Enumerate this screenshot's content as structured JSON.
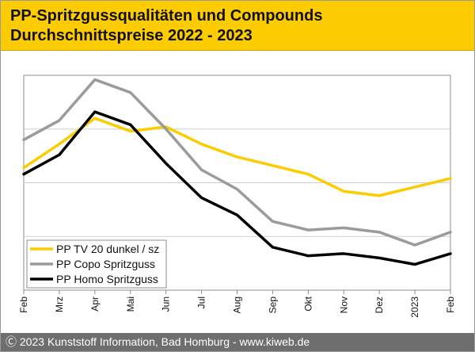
{
  "header": {
    "title_line1": "PP-Spritzgussqualitäten und Compounds",
    "title_line2": "Durchschnittspreise 2022 - 2023"
  },
  "footer": {
    "text": "Ⓒ 2023 Kunststoff Information, Bad Homburg - www.kiweb.de"
  },
  "chart_data": {
    "type": "line",
    "categories": [
      "Feb",
      "Mrz",
      "Apr",
      "Mai",
      "Jun",
      "Jul",
      "Aug",
      "Sep",
      "Okt",
      "Nov",
      "Dez",
      "2023",
      "Feb"
    ],
    "ylim": [
      0,
      100
    ],
    "grid": true,
    "legend_position": "bottom-left",
    "series": [
      {
        "name": "PP TV 20 dunkel / sz",
        "color": "#fccc00",
        "values": [
          57,
          68,
          80,
          74,
          76,
          68,
          62,
          58,
          54,
          46,
          44,
          48,
          52
        ]
      },
      {
        "name": "PP Copo Spritzguss",
        "color": "#9b9b9b",
        "values": [
          70,
          79,
          98,
          92,
          75,
          56,
          47,
          32,
          28,
          29,
          27,
          21,
          27
        ]
      },
      {
        "name": "PP Homo Spritzguss",
        "color": "#000000",
        "values": [
          54,
          63,
          83,
          77,
          59,
          43,
          35,
          20,
          16,
          17,
          15,
          12,
          17
        ]
      }
    ]
  }
}
